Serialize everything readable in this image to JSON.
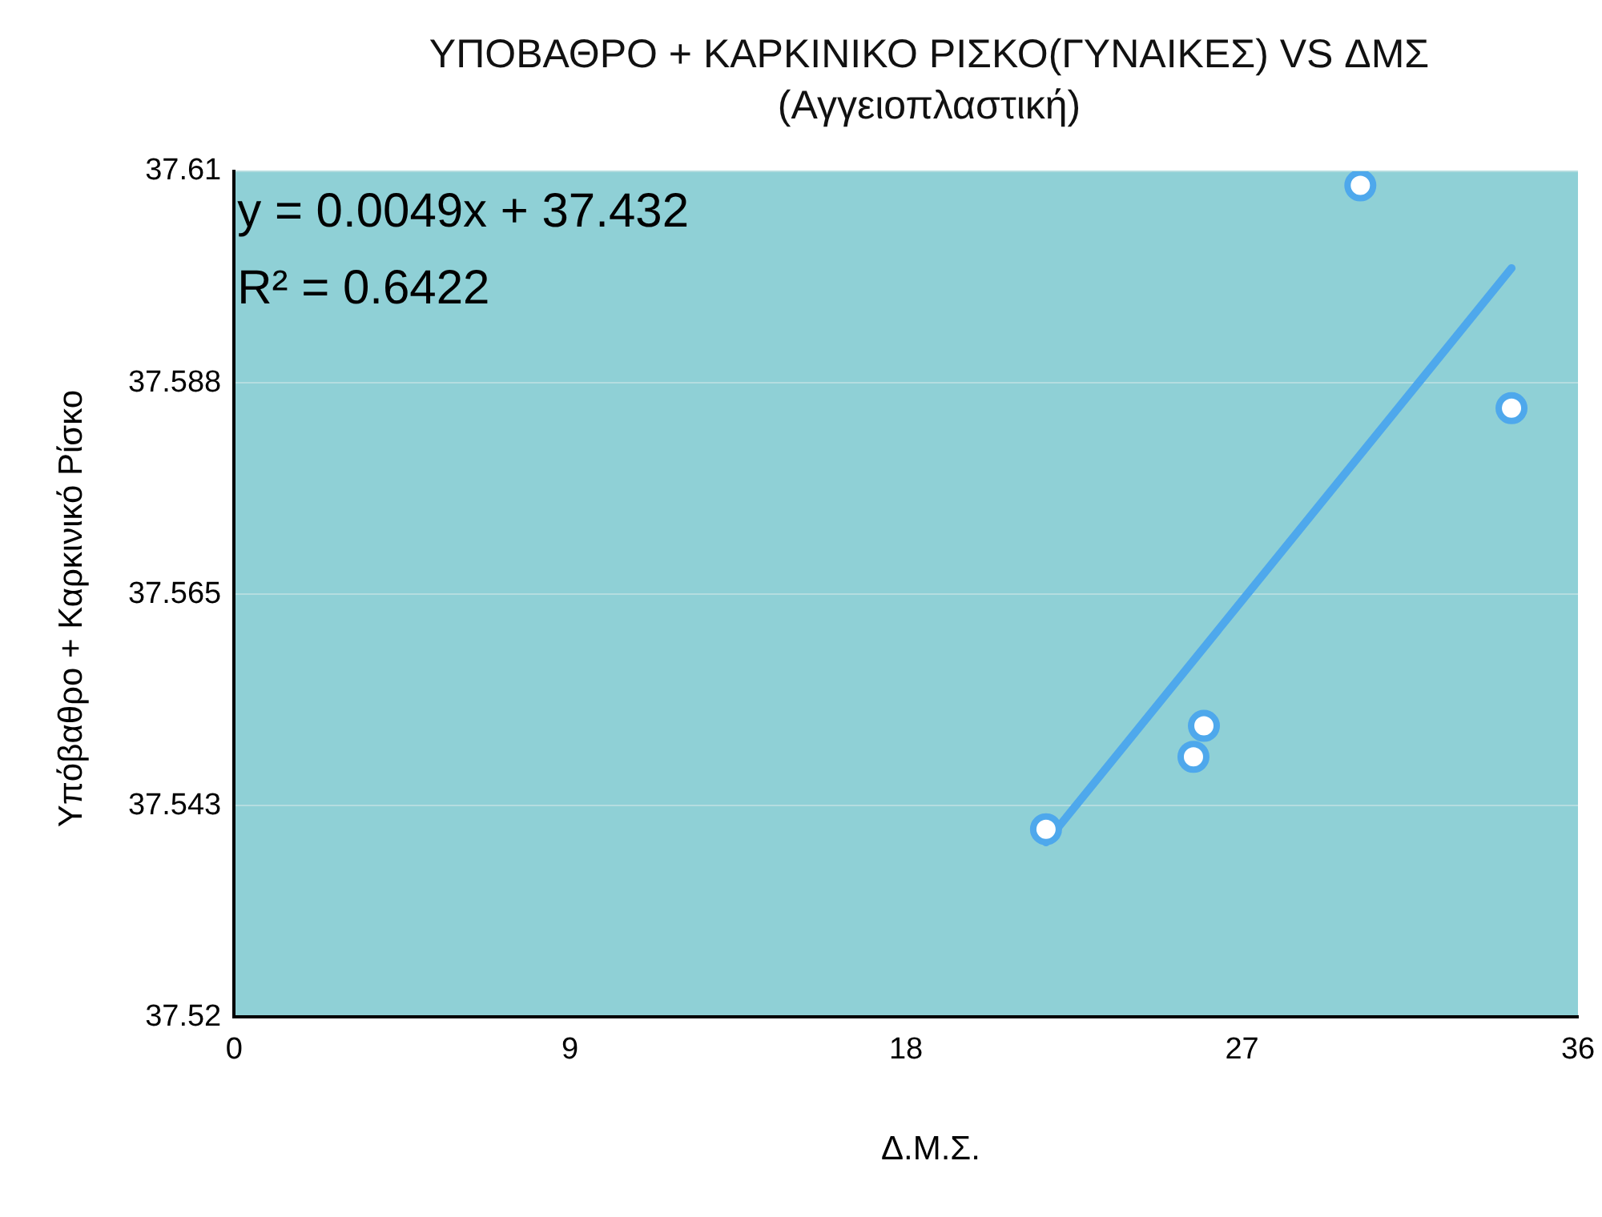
{
  "chart_data": {
    "type": "scatter",
    "title": "ΥΠΟΒΑΘΡΟ + ΚΑΡΚΙΝΙΚΟ ΡΙΣΚΟ(ΓΥΝΑΙΚΕΣ) VS ΔΜΣ",
    "subtitle": "(Αγγειοπλαστική)",
    "xlabel": "Δ.Μ.Σ.",
    "ylabel": "Υπόβαθρο + Καρκινικό Ρίσκο",
    "series": [
      {
        "color": "#4ea8ec",
        "x": [
          21.75,
          25.7,
          25.98,
          30.17,
          34.22
        ],
        "values": [
          37.54,
          37.5477,
          37.551,
          37.6085,
          37.5848
        ]
      },
      {
        "type": "line",
        "marker": "none",
        "color": "#4ea8ec",
        "x": [
          21.75,
          34.22
        ],
        "values": [
          37.5386,
          37.5997
        ]
      }
    ],
    "xlim": [
      0,
      36
    ],
    "xticks": [
      0,
      9,
      18,
      27,
      36
    ],
    "ylim": [
      37.52,
      37.61
    ],
    "yticks": [
      37.52,
      {
        "value": 37.5425,
        "label": "37.543"
      },
      37.565,
      {
        "value": 37.5875,
        "label": "37.588"
      },
      37.61
    ],
    "grid": "y",
    "marker": "circle",
    "line_style": "solid",
    "legend": false,
    "annotations": [
      "y = 0.0049x + 37.432",
      "R² = 0.6422"
    ]
  }
}
